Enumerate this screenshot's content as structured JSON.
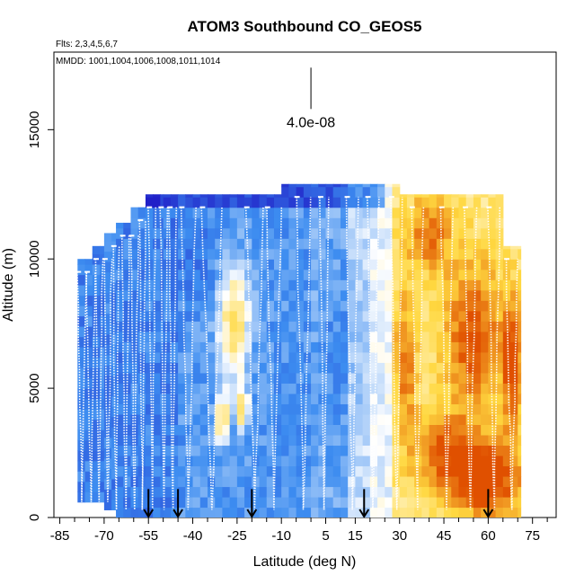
{
  "chart_data": {
    "type": "heatmap",
    "title": "ATOM3 Southbound CO_GEOS5",
    "flights_label": "Flts: 2,3,4,5,6,7",
    "dates_label": "MMDD: 1001,1004,1006,1008,1011,1014",
    "xlabel": "Latitude (deg N)",
    "ylabel": "Altitude (m)",
    "xlim": [
      -87,
      83
    ],
    "ylim": [
      0,
      18000
    ],
    "x_ticks": [
      -85,
      -70,
      -55,
      -40,
      -25,
      -10,
      5,
      15,
      30,
      45,
      60,
      75
    ],
    "x_tick_labels": [
      "-85",
      "-70",
      "-55",
      "-40",
      "-25",
      "-10",
      "5",
      "15",
      "30",
      "45",
      "60",
      "75"
    ],
    "x_minor_ticks": [
      -80,
      -75,
      -65,
      -60,
      -50,
      -45,
      -35,
      -30,
      -20,
      -15,
      -5,
      0,
      10,
      20,
      25,
      35,
      40,
      50,
      55,
      65,
      70,
      80
    ],
    "y_ticks": [
      0,
      5000,
      10000,
      15000
    ],
    "y_tick_labels": [
      "0",
      "5000",
      "10000",
      "15000"
    ],
    "scale_label": "4.0e-08",
    "scale_bar": {
      "lat": 0,
      "alt_bottom": 15800,
      "alt_top": 17400
    },
    "arrow_latitudes": [
      -55,
      -45,
      -20,
      18,
      60
    ],
    "color_scale": {
      "low": "#2020c8",
      "mid_low": "#3c8cf0",
      "mid": "#ffffff",
      "mid_high": "#ffd840",
      "high": "#e05000",
      "note_values": [
        -1,
        1
      ]
    },
    "columns": [
      {
        "lat": [
          -79,
          -74
        ],
        "top": 10000,
        "bottom": 600
      },
      {
        "lat": [
          -74,
          -70
        ],
        "top": 10500,
        "bottom": 600
      },
      {
        "lat": [
          -70,
          -66
        ],
        "top": 11000,
        "bottom": 300
      },
      {
        "lat": [
          -66,
          -61
        ],
        "top": 11400,
        "bottom": 0
      },
      {
        "lat": [
          -61,
          -56
        ],
        "top": 12000,
        "bottom": 0
      },
      {
        "lat": [
          -56,
          -50
        ],
        "top": 12500,
        "bottom": 0
      },
      {
        "lat": [
          -50,
          -10
        ],
        "top": 12500,
        "bottom": 0
      },
      {
        "lat": [
          -10,
          25
        ],
        "top": 12900,
        "bottom": 0
      },
      {
        "lat": [
          25,
          30
        ],
        "top": 12900,
        "bottom": 0
      },
      {
        "lat": [
          30,
          65
        ],
        "top": 12500,
        "bottom": 0
      },
      {
        "lat": [
          65,
          71
        ],
        "top": 10500,
        "bottom": 0
      }
    ],
    "blobs": [
      {
        "lat": -26,
        "alt": 7500,
        "rlat": 5,
        "ralt": 2200,
        "value": 0.9
      },
      {
        "lat": -30,
        "alt": 3800,
        "rlat": 2.2,
        "ralt": 900,
        "value": 1
      },
      {
        "lat": -23,
        "alt": 4200,
        "rlat": 2,
        "ralt": 800,
        "value": 0.85
      },
      {
        "lat": 55,
        "alt": 7000,
        "rlat": 10,
        "ralt": 3000,
        "value": 0.7
      },
      {
        "lat": 40,
        "alt": 11000,
        "rlat": 8,
        "ralt": 1500,
        "value": 0.55
      },
      {
        "lat": 60,
        "alt": 1500,
        "rlat": 12,
        "ralt": 1500,
        "value": 0.85
      },
      {
        "lat": 45,
        "alt": 2500,
        "rlat": 10,
        "ralt": 1500,
        "value": 0.6
      },
      {
        "lat": 68,
        "alt": 6000,
        "rlat": 3,
        "ralt": 2500,
        "value": 0.8
      },
      {
        "lat": 32,
        "alt": 6000,
        "rlat": 4,
        "ralt": 3000,
        "value": 0.55
      },
      {
        "lat": -40,
        "alt": 10000,
        "rlat": 6,
        "ralt": 1500,
        "value": -0.2
      },
      {
        "lat": 10,
        "alt": 6500,
        "rlat": 8,
        "ralt": 4000,
        "value": -0.15
      }
    ],
    "profiles": [
      {
        "lat0": -79,
        "lat1": -76
      },
      {
        "lat0": -76,
        "lat1": -73
      },
      {
        "lat0": -73,
        "lat1": -70.5
      },
      {
        "lat0": -70,
        "lat1": -67.5
      },
      {
        "lat0": -67,
        "lat1": -65
      },
      {
        "lat0": -64,
        "lat1": -61.5
      },
      {
        "lat0": -61,
        "lat1": -58.5
      },
      {
        "lat0": -58,
        "lat1": -56
      },
      {
        "lat0": -55,
        "lat1": -52.5
      },
      {
        "lat0": -51,
        "lat1": -48.5
      },
      {
        "lat0": -48,
        "lat1": -45.5
      },
      {
        "lat0": -44,
        "lat1": -39
      },
      {
        "lat0": -37,
        "lat1": -30
      },
      {
        "lat0": -22,
        "lat1": -16
      },
      {
        "lat0": -15,
        "lat1": -10
      },
      {
        "lat0": -5,
        "lat1": 0
      },
      {
        "lat0": 3,
        "lat1": 6
      },
      {
        "lat0": 12,
        "lat1": 16
      },
      {
        "lat0": 19,
        "lat1": 23
      },
      {
        "lat0": 27,
        "lat1": 31
      },
      {
        "lat0": 34,
        "lat1": 38
      },
      {
        "lat0": 44,
        "lat1": 48
      },
      {
        "lat0": 52,
        "lat1": 56
      },
      {
        "lat0": 60,
        "lat1": 64
      },
      {
        "lat0": 66,
        "lat1": 70
      }
    ]
  }
}
